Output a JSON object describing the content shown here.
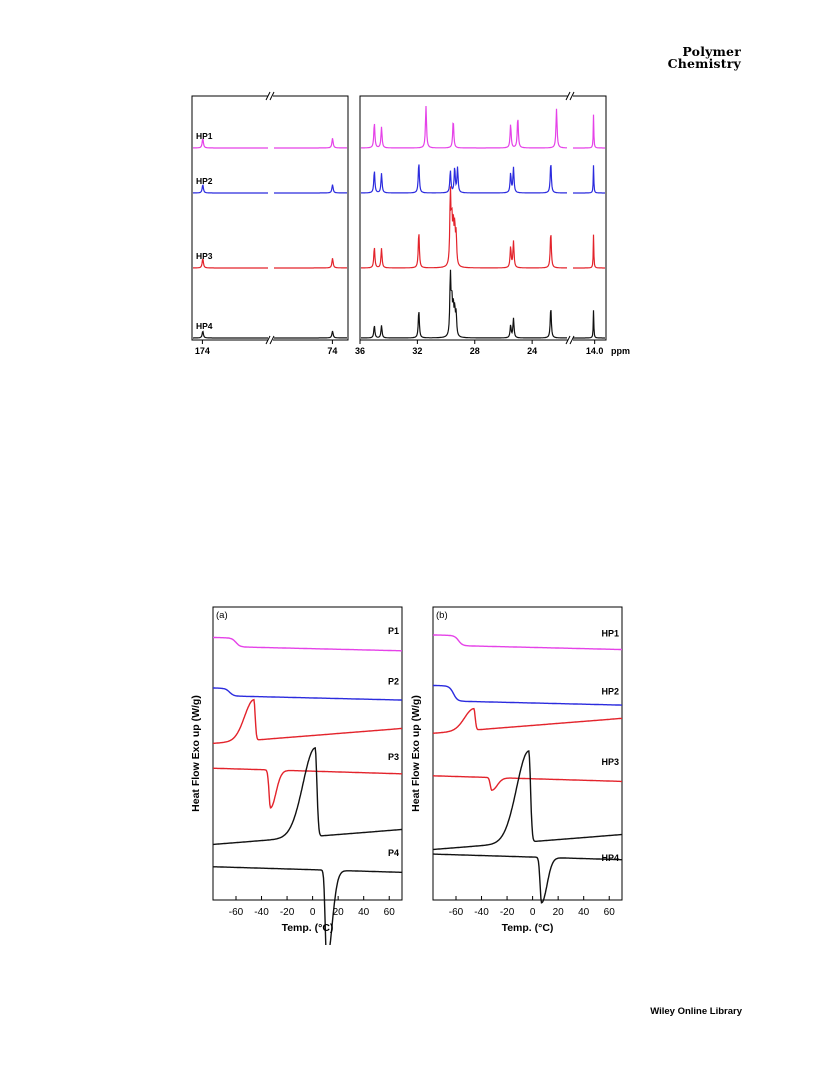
{
  "header": {
    "journal_line1": "Polymer",
    "journal_line2": "Chemistry"
  },
  "footer": {
    "text": "Wiley Online Library"
  },
  "colors": {
    "magenta": "#e542e8",
    "blue": "#2b2bde",
    "red": "#e3232b",
    "black": "#111111"
  },
  "chart_data": [
    {
      "type": "line",
      "title": "",
      "xlabel": "",
      "x_unit_label": "ppm",
      "panels": [
        {
          "xlim": [
            182,
            62
          ],
          "ticks": [
            "174",
            "74"
          ]
        },
        {
          "xlim": [
            36,
            21.5
          ],
          "ticks": [
            "36",
            "32",
            "28",
            "24"
          ]
        },
        {
          "xlim": [
            16,
            13
          ],
          "ticks": [
            "14.0"
          ]
        }
      ],
      "series": [
        {
          "name": "HP1",
          "color": "#e542e8",
          "peaks": [
            [
              173.7,
              0.35
            ],
            [
              73.9,
              0.35
            ],
            [
              35.0,
              0.9
            ],
            [
              34.5,
              0.75
            ],
            [
              31.4,
              1.5
            ],
            [
              29.5,
              1.0
            ],
            [
              25.5,
              0.85
            ],
            [
              25.0,
              1.1
            ],
            [
              22.3,
              1.4
            ],
            [
              14.1,
              1.2
            ]
          ]
        },
        {
          "name": "HP2",
          "color": "#2b2bde",
          "peaks": [
            [
              173.7,
              0.3
            ],
            [
              73.9,
              0.3
            ],
            [
              35.0,
              0.8
            ],
            [
              34.5,
              0.7
            ],
            [
              31.9,
              1.1
            ],
            [
              29.7,
              0.8
            ],
            [
              29.4,
              0.9
            ],
            [
              29.2,
              0.9
            ],
            [
              25.5,
              0.7
            ],
            [
              25.3,
              0.9
            ],
            [
              22.7,
              1.1
            ],
            [
              14.1,
              1.0
            ]
          ]
        },
        {
          "name": "HP3",
          "color": "#e3232b",
          "peaks": [
            [
              173.7,
              0.35
            ],
            [
              73.9,
              0.35
            ],
            [
              35.0,
              0.75
            ],
            [
              34.5,
              0.7
            ],
            [
              31.9,
              1.3
            ],
            [
              29.7,
              2.6
            ],
            [
              29.6,
              1.5
            ],
            [
              29.5,
              1.4
            ],
            [
              29.4,
              1.3
            ],
            [
              29.3,
              1.1
            ],
            [
              25.5,
              0.75
            ],
            [
              25.3,
              0.95
            ],
            [
              22.7,
              1.3
            ],
            [
              14.1,
              1.2
            ]
          ]
        },
        {
          "name": "HP4",
          "color": "#111111",
          "peaks": [
            [
              173.7,
              0.25
            ],
            [
              73.9,
              0.25
            ],
            [
              35.0,
              0.45
            ],
            [
              34.5,
              0.45
            ],
            [
              31.9,
              1.0
            ],
            [
              29.7,
              2.2
            ],
            [
              29.6,
              1.2
            ],
            [
              29.5,
              1.0
            ],
            [
              29.4,
              0.9
            ],
            [
              29.3,
              0.8
            ],
            [
              25.5,
              0.45
            ],
            [
              25.3,
              0.7
            ],
            [
              22.7,
              1.1
            ],
            [
              14.1,
              1.0
            ]
          ]
        }
      ]
    },
    {
      "type": "line",
      "panel_label": "(a)",
      "xlabel": "Temp. (°C)",
      "ylabel": "Heat Flow Exo up (W/g)",
      "xlim": [
        -78,
        70
      ],
      "xticks": [
        -60,
        -40,
        -20,
        0,
        20,
        40,
        60
      ],
      "curve_labels": [
        "P1",
        "P2",
        "P3",
        "P4"
      ],
      "series": [
        {
          "name": "P1",
          "color": "#e542e8",
          "kind": "step",
          "offset": 10.3,
          "tg": -60,
          "step": -0.35
        },
        {
          "name": "P2",
          "color": "#2b2bde",
          "kind": "step",
          "offset": 8.3,
          "tg": -65,
          "step": -0.3
        },
        {
          "name": "P3",
          "color": "#e3232b",
          "kind": "exo",
          "offset": 6.2,
          "center": -46,
          "height": 1.6
        },
        {
          "name": "P3",
          "color": "#e3232b",
          "kind": "endo",
          "offset": 5.1,
          "center": -33,
          "height": -1.5
        },
        {
          "name": "P4",
          "color": "#111111",
          "kind": "exo",
          "offset": 2.2,
          "center": 2,
          "height": 3.5
        },
        {
          "name": "P4",
          "color": "#111111",
          "kind": "endo",
          "offset": 1.2,
          "center": 11,
          "height": -3.6
        }
      ]
    },
    {
      "type": "line",
      "panel_label": "(b)",
      "xlabel": "Temp. (°C)",
      "ylabel": "Heat Flow Exo up (W/g)",
      "xlim": [
        -78,
        70
      ],
      "xticks": [
        -60,
        -40,
        -20,
        0,
        20,
        40,
        60
      ],
      "curve_labels": [
        "HP1",
        "HP2",
        "HP3",
        "HP4"
      ],
      "series": [
        {
          "name": "HP1",
          "color": "#e542e8",
          "kind": "step",
          "offset": 10.4,
          "tg": -58,
          "step": -0.4
        },
        {
          "name": "HP2",
          "color": "#2b2bde",
          "kind": "step",
          "offset": 8.4,
          "tg": -62,
          "step": -0.6
        },
        {
          "name": "HP3",
          "color": "#e3232b",
          "kind": "exo",
          "offset": 6.6,
          "center": -46,
          "height": 0.85
        },
        {
          "name": "HP3",
          "color": "#e3232b",
          "kind": "endo",
          "offset": 4.8,
          "center": -32,
          "height": -0.5
        },
        {
          "name": "HP4",
          "color": "#111111",
          "kind": "exo",
          "offset": 2.0,
          "center": -3,
          "height": 3.6
        },
        {
          "name": "HP4",
          "color": "#111111",
          "kind": "endo",
          "offset": 1.7,
          "center": 7,
          "height": -1.8
        }
      ]
    }
  ]
}
